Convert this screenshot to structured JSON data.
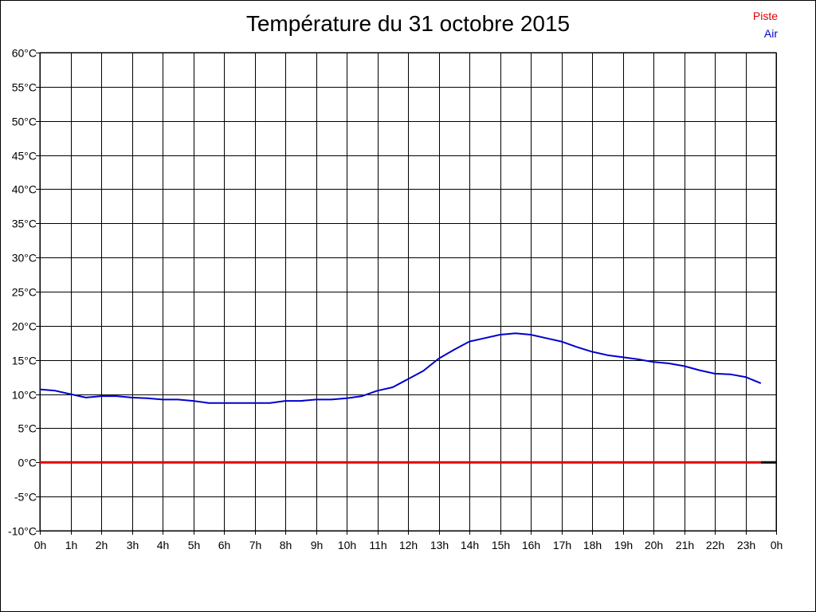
{
  "chart_data": {
    "type": "line",
    "title": "Température du 31 octobre 2015",
    "xlabel": "",
    "ylabel": "",
    "x_tick_labels": [
      "0h",
      "1h",
      "2h",
      "3h",
      "4h",
      "5h",
      "6h",
      "7h",
      "8h",
      "9h",
      "10h",
      "11h",
      "12h",
      "13h",
      "14h",
      "15h",
      "16h",
      "17h",
      "18h",
      "19h",
      "20h",
      "21h",
      "22h",
      "23h",
      "0h"
    ],
    "y_tick_labels": [
      "60°C",
      "55°C",
      "50°C",
      "45°C",
      "40°C",
      "35°C",
      "30°C",
      "25°C",
      "20°C",
      "15°C",
      "10°C",
      "5°C",
      "0°C",
      "-5°C",
      "-10°C"
    ],
    "xlim": [
      0,
      24
    ],
    "ylim": [
      -10,
      60
    ],
    "grid": true,
    "legend_position": "top-right",
    "series": [
      {
        "name": "Piste",
        "color": "#e00000",
        "x": [
          0,
          23.5
        ],
        "values": [
          0,
          0
        ]
      },
      {
        "name": "Air",
        "color": "#0000cc",
        "x": [
          0,
          0.5,
          1,
          1.5,
          2,
          2.5,
          3,
          3.5,
          4,
          4.5,
          5,
          5.5,
          6,
          6.5,
          7,
          7.5,
          8,
          8.5,
          9,
          9.5,
          10,
          10.5,
          11,
          11.5,
          12,
          12.5,
          13,
          13.5,
          14,
          14.5,
          15,
          15.5,
          16,
          16.5,
          17,
          17.5,
          18,
          18.5,
          19,
          19.5,
          20,
          20.5,
          21,
          21.5,
          22,
          22.5,
          23,
          23.5
        ],
        "values": [
          10.7,
          10.5,
          10.0,
          9.5,
          9.7,
          9.7,
          9.5,
          9.4,
          9.2,
          9.2,
          9.0,
          8.7,
          8.7,
          8.7,
          8.7,
          8.7,
          9.0,
          9.0,
          9.2,
          9.2,
          9.4,
          9.7,
          10.5,
          11.0,
          12.2,
          13.4,
          15.2,
          16.5,
          17.7,
          18.2,
          18.7,
          18.9,
          18.7,
          18.2,
          17.7,
          16.9,
          16.2,
          15.7,
          15.4,
          15.1,
          14.7,
          14.5,
          14.1,
          13.5,
          13.0,
          12.9,
          12.5,
          11.6
        ]
      }
    ]
  }
}
